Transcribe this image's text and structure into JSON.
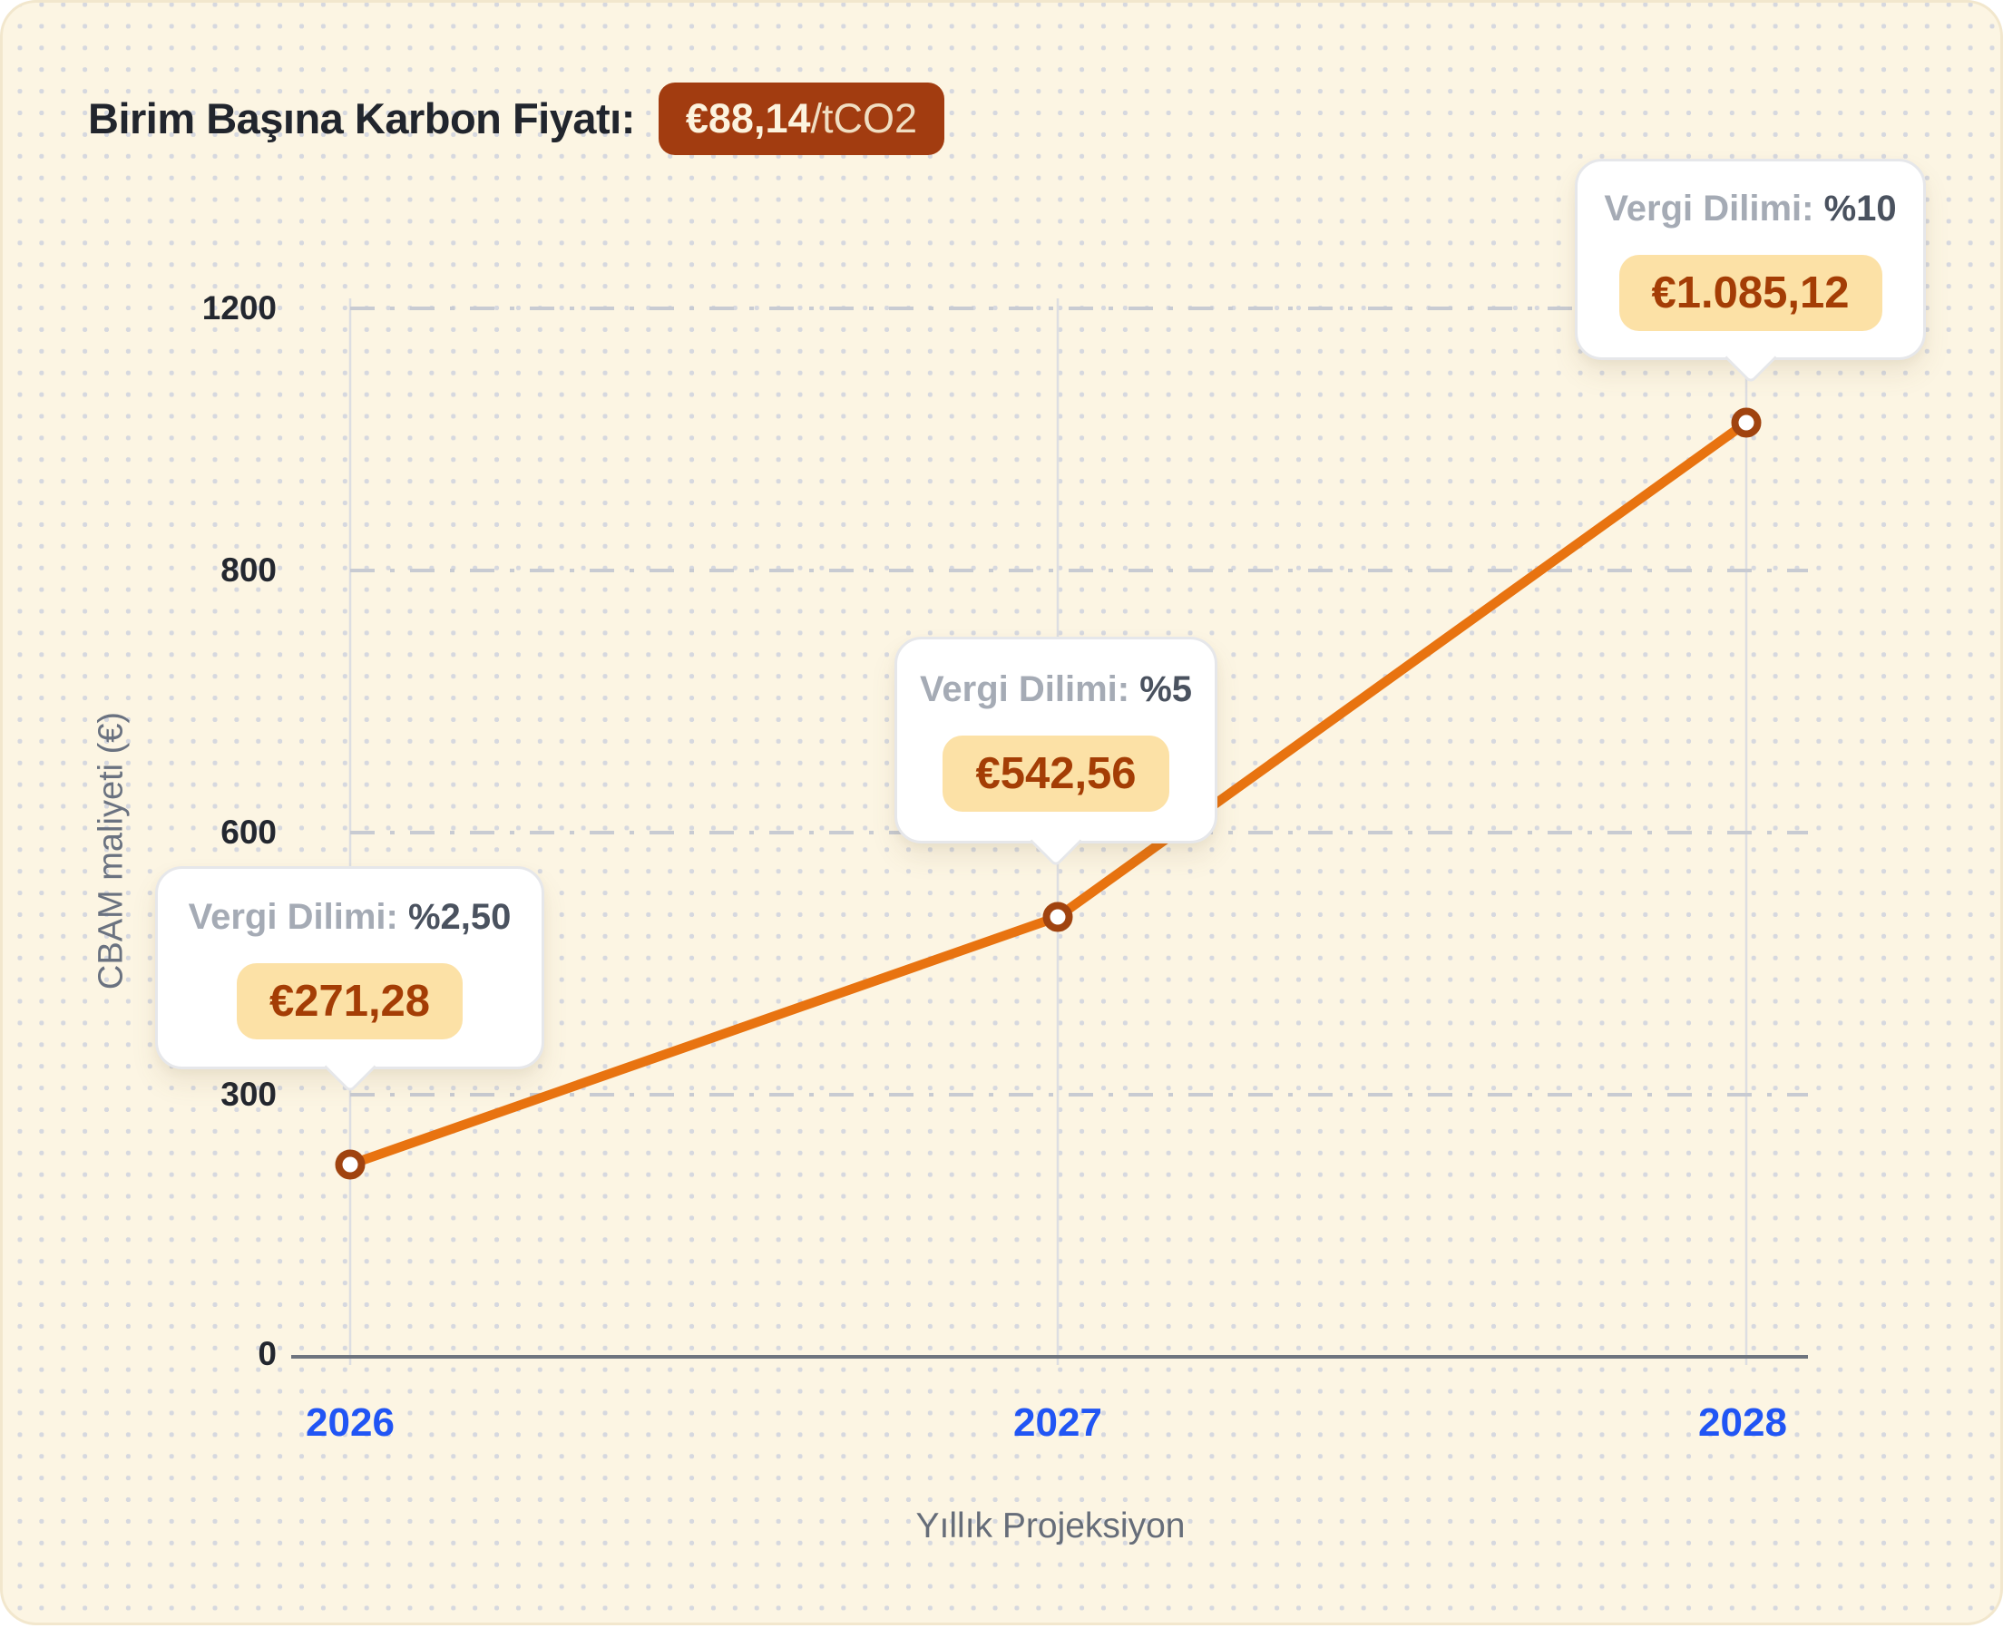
{
  "header": {
    "title": "Birim Başına Karbon Fiyatı:",
    "carbon_price_badge": {
      "value": "€88,14",
      "unit": "/tCO2"
    }
  },
  "chart_data": {
    "type": "line",
    "categories": [
      "2026",
      "2027",
      "2028"
    ],
    "series": [
      {
        "name": "CBAM maliyeti (€)",
        "values": [
          271.28,
          542.56,
          1085.12
        ]
      }
    ],
    "xlabel": "Yıllık Projeksiyon",
    "ylabel": "CBAM maliyeti (€)",
    "y_tick_labels": [
      "1200",
      "800",
      "600",
      "300",
      "0"
    ],
    "ylim": [
      0,
      1200
    ],
    "grid": "horizontal-dashed",
    "legend": "none",
    "annotations": [
      {
        "year": "2026",
        "label": "Vergi Dilimi:",
        "bracket": "%2,50",
        "amount": "€271,28"
      },
      {
        "year": "2027",
        "label": "Vergi Dilimi:",
        "bracket": "%5",
        "amount": "€542,56"
      },
      {
        "year": "2028",
        "label": "Vergi Dilimi:",
        "bracket": "%10",
        "amount": "€1.085,12"
      }
    ]
  },
  "colors": {
    "line_orange": "#E87310",
    "point_ring": "#A0430F",
    "year_label_blue": "#2155F4",
    "carbon_badge_bg": "#A23C10",
    "amount_badge_bg": "#FCE1A6",
    "amount_text": "#A43D05",
    "panel_bg": "#FCF5E3"
  }
}
